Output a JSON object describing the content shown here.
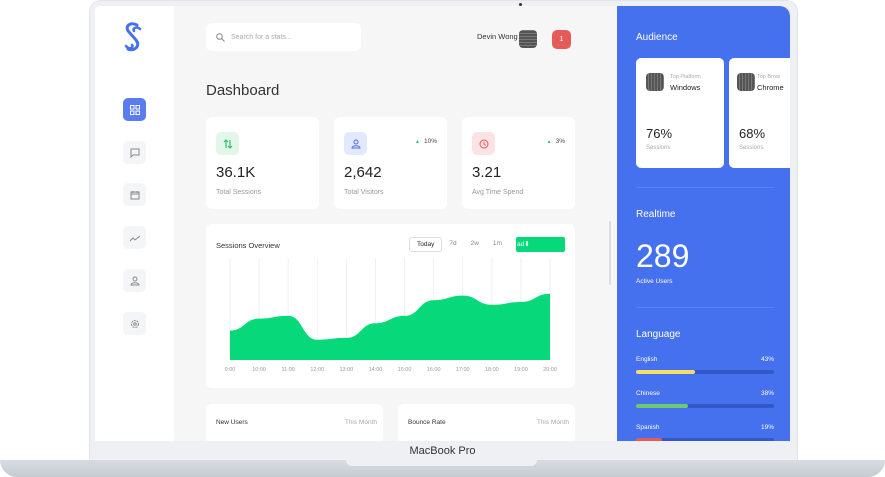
{
  "device_label": "MacBook Pro",
  "search": {
    "placeholder": "Search for a stats..."
  },
  "header": {
    "user_name": "Devin Wong",
    "notification_count": "1"
  },
  "page_title": "Dashboard",
  "sidebar": {
    "items": [
      {
        "icon": "dashboard-icon",
        "active": true
      },
      {
        "icon": "chat-icon"
      },
      {
        "icon": "calendar-icon"
      },
      {
        "icon": "trend-icon"
      },
      {
        "icon": "user-icon"
      },
      {
        "icon": "gear-icon"
      }
    ]
  },
  "stats": [
    {
      "icon": "arrows-up-down-icon",
      "value": "36.1K",
      "label": "Total Sessions",
      "change": "",
      "color": "#2fbf71"
    },
    {
      "icon": "user-icon",
      "value": "2,642",
      "label": "Total Visitors",
      "change": "10%",
      "color": "#4a6cf0"
    },
    {
      "icon": "clock-icon",
      "value": "3.21",
      "label": "Avg Time Spend",
      "change": "3%",
      "color": "#e45b57"
    }
  ],
  "sessions": {
    "title": "Sessions Overview",
    "tabs": [
      "Today",
      "7d",
      "2w",
      "1m"
    ],
    "active_tab": "Today",
    "download_label": "ad"
  },
  "chart_data": {
    "type": "area",
    "x": [
      "9:00",
      "10:00",
      "11:00",
      "12:00",
      "13:00",
      "14:00",
      "15:00",
      "16:00",
      "17:00",
      "18:00",
      "19:00",
      "20:00"
    ],
    "values": [
      32,
      45,
      48,
      22,
      24,
      40,
      48,
      65,
      70,
      60,
      63,
      72
    ],
    "color": "#07d87a",
    "grid": true
  },
  "bottom_cards": [
    {
      "title": "New Users",
      "period": "This Month"
    },
    {
      "title": "Bounce Rate",
      "period": "This Month"
    }
  ],
  "audience": {
    "title": "Audience",
    "cards": [
      {
        "sub": "Top Platform",
        "name": "Windows",
        "pct": "76%",
        "label": "Sessions"
      },
      {
        "sub": "Top Brow",
        "name": "Chrome",
        "pct": "68%",
        "label": "Sessions"
      }
    ]
  },
  "realtime": {
    "title": "Realtime",
    "value": "289",
    "label": "Active Users"
  },
  "language": {
    "title": "Language",
    "items": [
      {
        "name": "English",
        "pct": "43%",
        "value": 43,
        "color": "#f6dc6b"
      },
      {
        "name": "Chinese",
        "pct": "38%",
        "value": 38,
        "color": "#6cc96f"
      },
      {
        "name": "Spanish",
        "pct": "19%",
        "value": 19,
        "color": "#e45b57"
      }
    ]
  }
}
